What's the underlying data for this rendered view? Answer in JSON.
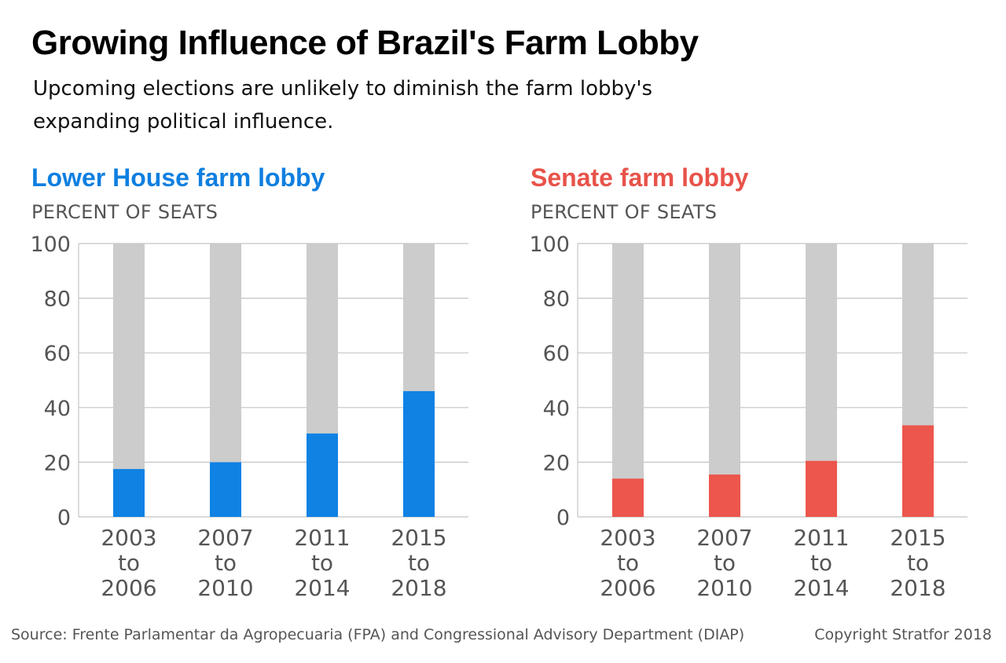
{
  "title": "Growing Influence of Brazil's Farm Lobby",
  "subtitle": "Upcoming elections are unlikely to diminish the farm lobby's expanding political influence.",
  "source": "Source: Frente Parlamentar da Agropecuaria (FPA) and Congressional Advisory Department (DIAP)",
  "copyright": "Copyright Stratfor 2018",
  "colors": {
    "lower_house": "#0f82e4",
    "senate": "#ec564c",
    "background_bar": "#cccccc",
    "gridline": "#c4c4c4"
  },
  "chart_data": [
    {
      "type": "bar",
      "title": "Lower House farm lobby",
      "ylabel": "PERCENT OF SEATS",
      "categories": [
        "2003 to 2006",
        "2007 to 2010",
        "2011 to 2014",
        "2015 to 2018"
      ],
      "category_lines": [
        [
          "2003",
          "to",
          "2006"
        ],
        [
          "2007",
          "to",
          "2010"
        ],
        [
          "2011",
          "to",
          "2014"
        ],
        [
          "2015",
          "to",
          "2018"
        ]
      ],
      "values": [
        17.5,
        20,
        30.5,
        46
      ],
      "background_values": [
        100,
        100,
        100,
        100
      ],
      "ylim": [
        0,
        100
      ],
      "yticks": [
        0,
        20,
        40,
        60,
        80,
        100
      ],
      "grid": true,
      "legend": "none"
    },
    {
      "type": "bar",
      "title": "Senate farm lobby",
      "ylabel": "PERCENT OF SEATS",
      "categories": [
        "2003 to 2006",
        "2007 to 2010",
        "2011 to 2014",
        "2015 to 2018"
      ],
      "category_lines": [
        [
          "2003",
          "to",
          "2006"
        ],
        [
          "2007",
          "to",
          "2010"
        ],
        [
          "2011",
          "to",
          "2014"
        ],
        [
          "2015",
          "to",
          "2018"
        ]
      ],
      "values": [
        14,
        15.5,
        20.5,
        33.5
      ],
      "background_values": [
        100,
        100,
        100,
        100
      ],
      "ylim": [
        0,
        100
      ],
      "yticks": [
        0,
        20,
        40,
        60,
        80,
        100
      ],
      "grid": true,
      "legend": "none"
    }
  ]
}
